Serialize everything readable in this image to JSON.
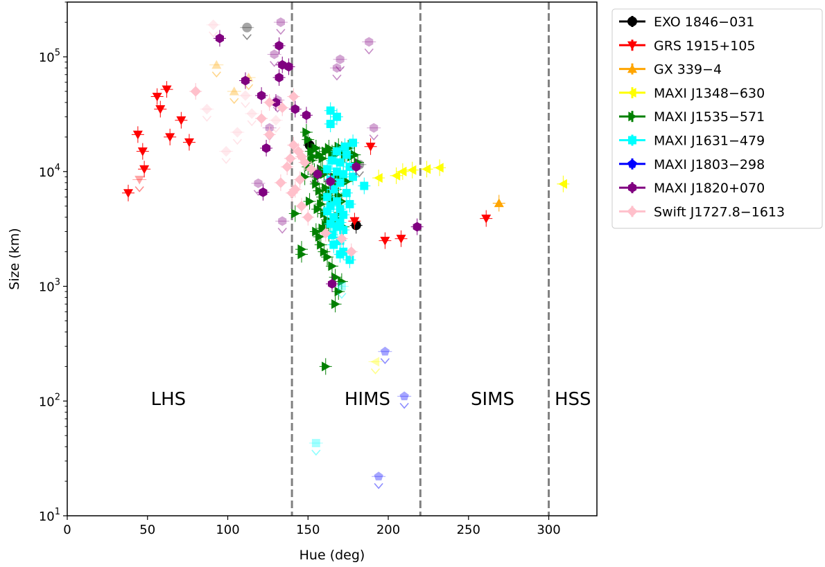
{
  "chart_data": {
    "type": "scatter",
    "xlabel": "Hue (deg)",
    "ylabel": "Size (km)",
    "xlim": [
      0,
      330
    ],
    "ylim": [
      10,
      300000
    ],
    "yscale": "log",
    "x_ticks": [
      0,
      50,
      100,
      150,
      200,
      250,
      300
    ],
    "y_ticks": [
      {
        "value": 10,
        "base": "10",
        "exp": "1"
      },
      {
        "value": 100,
        "base": "10",
        "exp": "2"
      },
      {
        "value": 1000,
        "base": "10",
        "exp": "3"
      },
      {
        "value": 10000,
        "base": "10",
        "exp": "4"
      },
      {
        "value": 100000,
        "base": "10",
        "exp": "5"
      }
    ],
    "region_boundaries": [
      140,
      220,
      300
    ],
    "regions": [
      {
        "label": "LHS",
        "x": 63,
        "y": 105
      },
      {
        "label": "HIMS",
        "x": 187,
        "y": 105
      },
      {
        "label": "SIMS",
        "x": 265,
        "y": 105
      },
      {
        "label": "HSS",
        "x": 315,
        "y": 105
      }
    ],
    "legend_position": "outside-right",
    "series": [
      {
        "name": "EXO 1846−031",
        "color": "#000000",
        "marker": "circle",
        "points": [
          [
            151,
            17000
          ],
          [
            180,
            3400
          ]
        ],
        "upper_limits": [
          [
            112,
            180000
          ],
          [
            154,
            9500
          ],
          [
            182,
            11500
          ]
        ]
      },
      {
        "name": "GRS 1915+105",
        "color": "#ff0000",
        "marker": "triangle-down",
        "points": [
          [
            38,
            6500
          ],
          [
            44,
            21000
          ],
          [
            47,
            15000
          ],
          [
            48,
            10500
          ],
          [
            56,
            45000
          ],
          [
            58,
            35000
          ],
          [
            62,
            52000
          ],
          [
            64,
            20000
          ],
          [
            71,
            28000
          ],
          [
            76,
            18000
          ],
          [
            179,
            3700
          ],
          [
            189,
            16500
          ],
          [
            198,
            2500
          ],
          [
            208,
            2600
          ],
          [
            261,
            3900
          ]
        ],
        "upper_limits": [
          [
            45,
            8500
          ]
        ]
      },
      {
        "name": "GX 339−4",
        "color": "#ffa500",
        "marker": "triangle-up",
        "points": [
          [
            269,
            5300
          ]
        ],
        "upper_limits": [
          [
            93,
            85000
          ],
          [
            104,
            50000
          ],
          [
            113,
            66000
          ]
        ]
      },
      {
        "name": "MAXI J1348−630",
        "color": "#ffff00",
        "marker": "triangle-left",
        "points": [
          [
            309,
            7800
          ],
          [
            232,
            10800
          ],
          [
            224,
            10500
          ],
          [
            215,
            10300
          ],
          [
            209,
            10000
          ],
          [
            205,
            9200
          ],
          [
            194,
            8800
          ]
        ],
        "upper_limits": [
          [
            192,
            220
          ]
        ]
      },
      {
        "name": "MAXI J1535−571",
        "color": "#008000",
        "marker": "triangle-right",
        "points": [
          [
            149,
            22000
          ],
          [
            150,
            19000
          ],
          [
            152,
            15000
          ],
          [
            153,
            13500
          ],
          [
            155,
            16000
          ],
          [
            157,
            14000
          ],
          [
            159,
            13000
          ],
          [
            161,
            15000
          ],
          [
            163,
            16000
          ],
          [
            165,
            14500
          ],
          [
            167,
            14000
          ],
          [
            169,
            16500
          ],
          [
            171,
            15500
          ],
          [
            173,
            14000
          ],
          [
            175,
            16000
          ],
          [
            177,
            13500
          ],
          [
            179,
            14000
          ],
          [
            181,
            12000
          ],
          [
            150,
            11000
          ],
          [
            152,
            12500
          ],
          [
            154,
            10000
          ],
          [
            156,
            9000
          ],
          [
            158,
            10500
          ],
          [
            160,
            9500
          ],
          [
            162,
            10000
          ],
          [
            164,
            8500
          ],
          [
            166,
            9000
          ],
          [
            168,
            8000
          ],
          [
            170,
            8800
          ],
          [
            172,
            9500
          ],
          [
            174,
            8200
          ],
          [
            148,
            9000
          ],
          [
            155,
            7800
          ],
          [
            157,
            6800
          ],
          [
            159,
            6000
          ],
          [
            161,
            7200
          ],
          [
            163,
            6500
          ],
          [
            165,
            5800
          ],
          [
            167,
            7000
          ],
          [
            169,
            6200
          ],
          [
            171,
            5500
          ],
          [
            151,
            5500
          ],
          [
            156,
            4700
          ],
          [
            158,
            5200
          ],
          [
            160,
            4300
          ],
          [
            162,
            3800
          ],
          [
            164,
            3500
          ],
          [
            168,
            3900
          ],
          [
            170,
            4400
          ],
          [
            172,
            3300
          ],
          [
            155,
            3000
          ],
          [
            157,
            2700
          ],
          [
            159,
            3200
          ],
          [
            161,
            3400
          ],
          [
            163,
            2900
          ],
          [
            142,
            4300
          ],
          [
            146,
            2100
          ],
          [
            158,
            2300
          ],
          [
            160,
            2000
          ],
          [
            162,
            1800
          ],
          [
            165,
            1500
          ],
          [
            167,
            1200
          ],
          [
            169,
            900
          ],
          [
            171,
            1100
          ],
          [
            146,
            1900
          ],
          [
            167,
            700
          ],
          [
            161,
            200
          ]
        ],
        "upper_limits": []
      },
      {
        "name": "MAXI J1631−479",
        "color": "#00ffff",
        "marker": "square",
        "points": [
          [
            164,
            34000
          ],
          [
            168,
            30000
          ],
          [
            164,
            26000
          ],
          [
            178,
            17800
          ],
          [
            173,
            16500
          ],
          [
            168,
            15000
          ],
          [
            174,
            14000
          ],
          [
            165,
            12500
          ],
          [
            170,
            12000
          ],
          [
            176,
            11000
          ],
          [
            162,
            10500
          ],
          [
            168,
            10000
          ],
          [
            172,
            9500
          ],
          [
            178,
            9000
          ],
          [
            164,
            8500
          ],
          [
            170,
            8000
          ],
          [
            185,
            7500
          ],
          [
            166,
            7000
          ],
          [
            174,
            6500
          ],
          [
            162,
            6000
          ],
          [
            168,
            5500
          ],
          [
            176,
            5200
          ],
          [
            164,
            5000
          ],
          [
            170,
            4700
          ],
          [
            162,
            4500
          ],
          [
            172,
            4200
          ],
          [
            166,
            4000
          ],
          [
            170,
            3600
          ],
          [
            164,
            3500
          ],
          [
            168,
            3300
          ],
          [
            172,
            3100
          ],
          [
            165,
            2800
          ],
          [
            170,
            2500
          ],
          [
            166,
            2300
          ],
          [
            172,
            2000
          ],
          [
            176,
            1700
          ],
          [
            170,
            1900
          ]
        ],
        "upper_limits": [
          [
            171,
            1000
          ],
          [
            155,
            43
          ]
        ]
      },
      {
        "name": "MAXI J1803−298",
        "color": "#0000ff",
        "marker": "pentagon",
        "points": [],
        "upper_limits": [
          [
            198,
            270
          ],
          [
            210,
            110
          ],
          [
            194,
            22
          ]
        ]
      },
      {
        "name": "MAXI J1820+070",
        "color": "#800080",
        "marker": "hexagon",
        "points": [
          [
            95,
            145000
          ],
          [
            132,
            125000
          ],
          [
            134,
            85000
          ],
          [
            138,
            82000
          ],
          [
            111,
            62000
          ],
          [
            132,
            66000
          ],
          [
            130,
            40000
          ],
          [
            121,
            46000
          ],
          [
            142,
            35000
          ],
          [
            149,
            31000
          ],
          [
            124,
            16000
          ],
          [
            156,
            9500
          ],
          [
            164,
            8200
          ],
          [
            180,
            11000
          ],
          [
            122,
            6600
          ],
          [
            165,
            1050
          ],
          [
            218,
            3300
          ]
        ],
        "upper_limits": [
          [
            129,
            105000
          ],
          [
            126,
            24000
          ],
          [
            119,
            7900
          ],
          [
            134,
            3700
          ],
          [
            131,
            42000
          ],
          [
            133,
            200000
          ],
          [
            170,
            95000
          ],
          [
            188,
            135000
          ],
          [
            168,
            80000
          ],
          [
            191,
            24000
          ]
        ]
      },
      {
        "name": "Swift J1727.8−1613",
        "color": "#ffc0cb",
        "marker": "diamond",
        "points": [
          [
            80,
            50000
          ],
          [
            126,
            40000
          ],
          [
            141,
            45000
          ],
          [
            134,
            36000
          ],
          [
            121,
            29000
          ],
          [
            126,
            21000
          ],
          [
            141,
            17000
          ],
          [
            144,
            15000
          ],
          [
            146,
            13500
          ],
          [
            139,
            13000
          ],
          [
            137,
            11000
          ],
          [
            148,
            12000
          ],
          [
            152,
            10500
          ],
          [
            145,
            8500
          ],
          [
            133,
            8000
          ],
          [
            142,
            7000
          ],
          [
            140,
            6500
          ],
          [
            146,
            5000
          ],
          [
            150,
            4000
          ],
          [
            161,
            2900
          ],
          [
            171,
            2600
          ],
          [
            177,
            2000
          ]
        ],
        "upper_limits": [
          [
            91,
            190000
          ],
          [
            87,
            35000
          ],
          [
            99,
            15000
          ],
          [
            106,
            22000
          ],
          [
            111,
            46000
          ],
          [
            115,
            32000
          ],
          [
            130,
            28000
          ]
        ]
      }
    ]
  }
}
